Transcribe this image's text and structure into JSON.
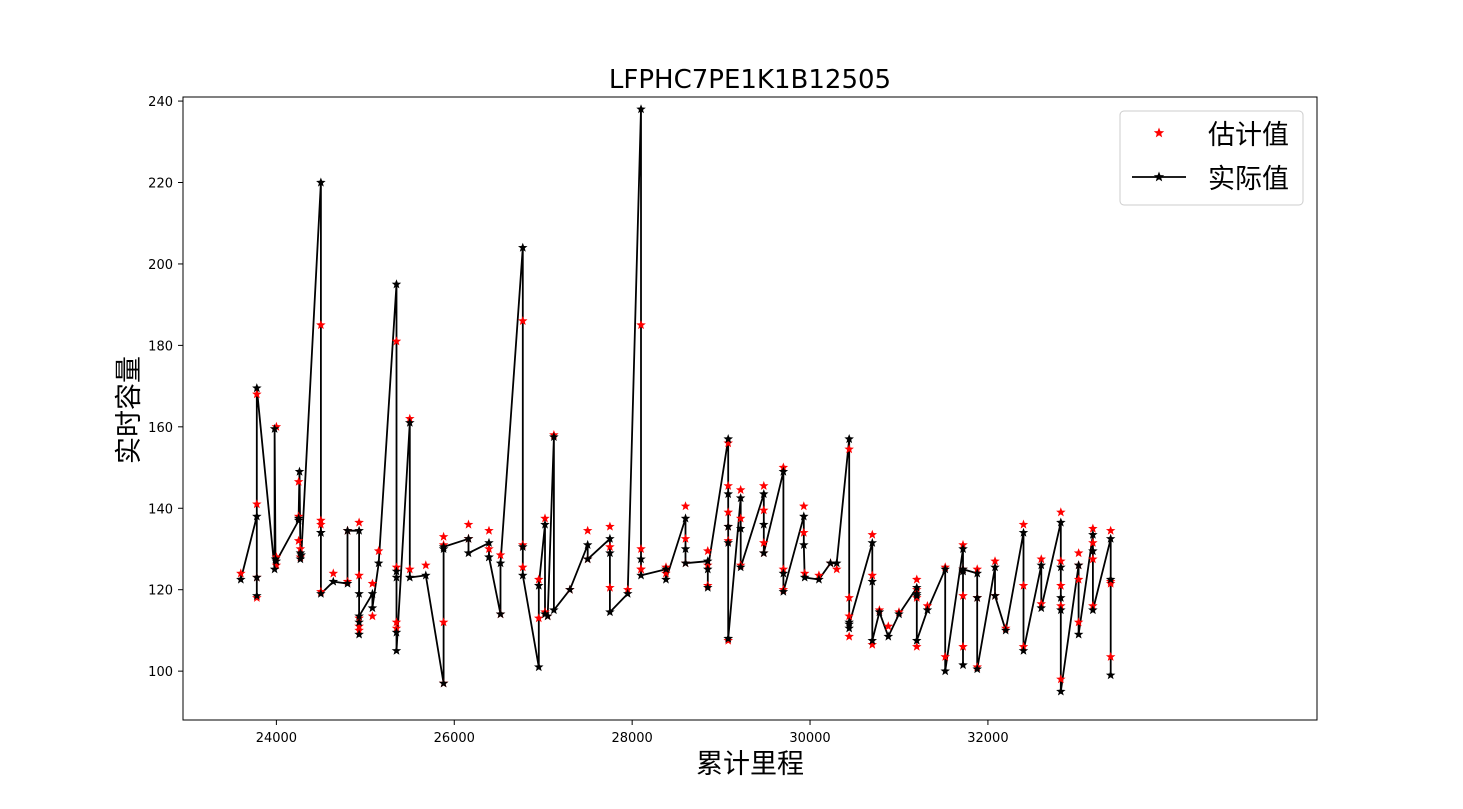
{
  "chart_data": {
    "type": "line",
    "title": "LFPHC7PE1K1B12505",
    "xlabel": "累计里程",
    "ylabel": "实时容量",
    "xlim": [
      22950,
      35700
    ],
    "ylim": [
      88,
      241
    ],
    "xticks": [
      24000,
      26000,
      28000,
      30000,
      32000
    ],
    "yticks": [
      100,
      120,
      140,
      160,
      180,
      200,
      220,
      240
    ],
    "grid": false,
    "legend_position": "top-right",
    "series": [
      {
        "name": "估计值",
        "style": "markers",
        "marker": "star",
        "color": "#ff0000",
        "x": [
          23600,
          23780,
          23780,
          23780,
          23780,
          24000,
          24000,
          24000,
          24250,
          24250,
          24250,
          24270,
          24270,
          24500,
          24500,
          24500,
          24500,
          24640,
          24800,
          24800,
          24930,
          24930,
          24930,
          24930,
          24930,
          25080,
          25080,
          25150,
          25350,
          25350,
          25350,
          25350,
          25500,
          25500,
          25680,
          25880,
          25880,
          25880,
          25880,
          26160,
          26160,
          26390,
          26390,
          26520,
          26520,
          26770,
          26770,
          26770,
          26950,
          26950,
          27020,
          27020,
          27050,
          27120,
          27300,
          27500,
          27500,
          27750,
          27750,
          27750,
          27950,
          28100,
          28100,
          28100,
          28100,
          28380,
          28380,
          28600,
          28600,
          28600,
          28850,
          28850,
          28850,
          29080,
          29080,
          29080,
          29080,
          29080,
          29080,
          29220,
          29220,
          29220,
          29480,
          29480,
          29480,
          29480,
          29700,
          29700,
          29700,
          29930,
          29930,
          29940,
          30100,
          30230,
          30300,
          30440,
          30440,
          30440,
          30440,
          30700,
          30700,
          30700,
          30780,
          30880,
          31000,
          31200,
          31200,
          31200,
          31200,
          31320,
          31520,
          31520,
          31720,
          31720,
          31720,
          31720,
          31880,
          31880,
          31880,
          32080,
          32080,
          32200,
          32400,
          32400,
          32400,
          32600,
          32600,
          32820,
          32820,
          32820,
          32820,
          32820,
          33020,
          33020,
          33020,
          33020,
          33180,
          33180,
          33180,
          33180,
          33380,
          33380,
          33380,
          33380
        ],
        "y": [
          124,
          141,
          118,
          123,
          168,
          128,
          160,
          126,
          138,
          146.5,
          132,
          128,
          130,
          185,
          137,
          136,
          119.5,
          124,
          122,
          134.5,
          136.5,
          123.5,
          113,
          110,
          111,
          121.5,
          113.5,
          129.5,
          181,
          112,
          125.5,
          110.5,
          162,
          125,
          126,
          112,
          133,
          131,
          97,
          136,
          132.5,
          134.5,
          130,
          128.5,
          114,
          186,
          131,
          125.5,
          122.5,
          113,
          137.5,
          114.5,
          113.5,
          158,
          120,
          134.5,
          127.5,
          135.5,
          130.5,
          120.5,
          120,
          185,
          130,
          125,
          125,
          124,
          125.5,
          140.5,
          126.5,
          132.5,
          129.5,
          126,
          121,
          156,
          145.5,
          139,
          135.5,
          132,
          107.5,
          144.5,
          137.5,
          126,
          145.5,
          139.5,
          131.5,
          129,
          150,
          125,
          120,
          140.5,
          134,
          124,
          123.5,
          126.5,
          125,
          154.5,
          118,
          113.5,
          108.5,
          133.5,
          123.5,
          106.5,
          115,
          111,
          114.5,
          122.5,
          120,
          118,
          106,
          116,
          125.5,
          103.5,
          131,
          125,
          118.5,
          106,
          125,
          118,
          101,
          127,
          118.5,
          110.5,
          136,
          121,
          106,
          127.5,
          116.5,
          139,
          127,
          121,
          116,
          98,
          129,
          126,
          122.5,
          112,
          135,
          127.5,
          131.5,
          116,
          134.5,
          122,
          121.5,
          103.5
        ]
      },
      {
        "name": "实际值",
        "style": "line+markers",
        "marker": "star",
        "color": "#000000",
        "x": [
          23600,
          23780,
          23780,
          23780,
          23780,
          23980,
          23980,
          23990,
          24000,
          24250,
          24250,
          24260,
          24270,
          24270,
          24280,
          24500,
          24500,
          24500,
          24500,
          24640,
          24800,
          24800,
          24930,
          24930,
          24930,
          24930,
          24930,
          25080,
          25080,
          25150,
          25350,
          25350,
          25350,
          25350,
          25350,
          25500,
          25500,
          25680,
          25880,
          25880,
          25880,
          26160,
          26160,
          26390,
          26390,
          26390,
          26520,
          26520,
          26770,
          26770,
          26770,
          26950,
          26950,
          27020,
          27020,
          27050,
          27120,
          27120,
          27300,
          27500,
          27500,
          27750,
          27750,
          27750,
          27950,
          28100,
          28100,
          28100,
          28380,
          28380,
          28600,
          28600,
          28600,
          28850,
          28850,
          28850,
          29080,
          29080,
          29080,
          29080,
          29080,
          29080,
          29220,
          29220,
          29220,
          29480,
          29480,
          29480,
          29700,
          29700,
          29700,
          29930,
          29930,
          29940,
          30100,
          30230,
          30300,
          30440,
          30440,
          30440,
          30440,
          30700,
          30700,
          30700,
          30780,
          30880,
          31000,
          31200,
          31200,
          31200,
          31200,
          31320,
          31520,
          31520,
          31720,
          31720,
          31720,
          31720,
          31880,
          31880,
          31880,
          32080,
          32080,
          32200,
          32400,
          32400,
          32600,
          32600,
          32820,
          32820,
          32820,
          32820,
          32820,
          33020,
          33020,
          33180,
          33180,
          33180,
          33380,
          33380,
          33380
        ],
        "y": [
          122.5,
          138,
          118.5,
          123,
          169.5,
          125,
          159.5,
          127.5,
          127,
          137,
          137.5,
          149,
          129,
          127.5,
          128.5,
          220,
          134,
          134,
          119,
          122,
          121.5,
          134.5,
          134.5,
          119,
          112,
          109,
          113.5,
          119,
          115.5,
          126.5,
          195,
          124.5,
          123,
          109.5,
          105,
          161,
          123,
          123.5,
          97,
          130,
          130.5,
          132.5,
          129,
          131.5,
          128,
          128,
          114,
          126.5,
          204,
          130.5,
          123.5,
          101,
          121,
          136,
          114,
          113.5,
          157.5,
          115,
          120,
          131,
          127.5,
          132.5,
          129,
          114.5,
          119,
          238,
          127.5,
          123.5,
          125,
          122.5,
          137.5,
          130,
          126.5,
          127,
          120.5,
          125,
          157,
          135.5,
          131.5,
          143.5,
          108,
          108,
          142.5,
          135,
          125.5,
          143.5,
          136,
          129,
          149,
          124,
          119.5,
          138,
          131,
          123,
          122.5,
          126.5,
          126.5,
          157,
          112,
          110.5,
          111.5,
          131.5,
          122,
          107.5,
          114.5,
          108.5,
          114,
          120.5,
          118.5,
          119,
          107.5,
          115,
          125,
          100,
          130,
          124.5,
          101.5,
          125,
          124,
          118,
          100.5,
          125.5,
          118.5,
          110,
          134,
          105,
          126,
          115.5,
          136.5,
          125.5,
          118,
          115,
          95,
          126,
          109,
          133.5,
          129.5,
          115,
          132.5,
          122.5,
          99
        ]
      }
    ]
  }
}
